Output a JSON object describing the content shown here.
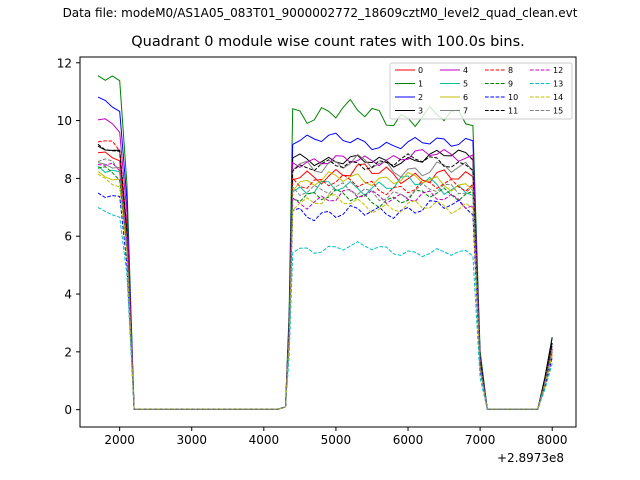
{
  "suptitle": "Data file: modeM0/AS1A05_083T01_9000002772_18609cztM0_level2_quad_clean.evt",
  "chart_data": {
    "type": "line",
    "title": "Quadrant 0 module wise count rates with 100.0s bins.",
    "xlabel": "",
    "ylabel": "",
    "x_offset_label": "+2.8973e8",
    "xlim": [
      1450,
      8330
    ],
    "ylim": [
      -0.6,
      12.2
    ],
    "xticks": [
      2000,
      3000,
      4000,
      5000,
      6000,
      7000,
      8000
    ],
    "yticks": [
      0,
      2,
      4,
      6,
      8,
      10,
      12
    ],
    "grid": false,
    "legend_position": "top-right",
    "legend_columns": 4,
    "x": [
      1700,
      1800,
      1900,
      2000,
      2100,
      2200,
      2300,
      2400,
      2500,
      2600,
      2700,
      2800,
      2900,
      3000,
      3100,
      3200,
      3300,
      3400,
      3500,
      3600,
      3700,
      3800,
      3900,
      4000,
      4100,
      4200,
      4300,
      4350,
      4400,
      4500,
      4600,
      4700,
      4800,
      4900,
      5000,
      5100,
      5200,
      5300,
      5400,
      5500,
      5600,
      5700,
      5800,
      5900,
      6000,
      6100,
      6200,
      6300,
      6400,
      6500,
      6600,
      6700,
      6800,
      6900,
      7000,
      7100,
      7200,
      7300,
      7400,
      7500,
      7600,
      7700,
      7800,
      7900,
      8000
    ],
    "series": [
      {
        "name": "0",
        "color": "#ff0000",
        "dash": "solid",
        "start": 8.8,
        "plateau": 8.1,
        "end": 1.9,
        "amp": 0.35,
        "ph": 0.2
      },
      {
        "name": "1",
        "color": "#008000",
        "dash": "solid",
        "start": 11.5,
        "plateau": 10.2,
        "end": 2.5,
        "amp": 0.45,
        "ph": 1.1
      },
      {
        "name": "2",
        "color": "#0000ff",
        "dash": "solid",
        "start": 10.7,
        "plateau": 9.3,
        "end": 2.3,
        "amp": 0.25,
        "ph": 2.3
      },
      {
        "name": "3",
        "color": "#000000",
        "dash": "solid",
        "start": 9.0,
        "plateau": 8.7,
        "end": 2.5,
        "amp": 0.25,
        "ph": 0.7
      },
      {
        "name": "4",
        "color": "#c000c0",
        "dash": "solid",
        "start": 10.0,
        "plateau": 8.7,
        "end": 2.2,
        "amp": 0.25,
        "ph": 1.9
      },
      {
        "name": "5",
        "color": "#00c0a0",
        "dash": "solid",
        "start": 8.4,
        "plateau": 7.7,
        "end": 2.1,
        "amp": 0.35,
        "ph": 3.0
      },
      {
        "name": "6",
        "color": "#c0c000",
        "dash": "solid",
        "start": 8.1,
        "plateau": 7.9,
        "end": 2.0,
        "amp": 0.3,
        "ph": 2.6
      },
      {
        "name": "7",
        "color": "#808080",
        "dash": "solid",
        "start": 8.4,
        "plateau": 8.4,
        "end": 2.2,
        "amp": 0.35,
        "ph": 0.4
      },
      {
        "name": "8",
        "color": "#ff0000",
        "dash": "dashed",
        "start": 9.3,
        "plateau": 7.8,
        "end": 2.1,
        "amp": 0.3,
        "ph": 1.5
      },
      {
        "name": "9",
        "color": "#008000",
        "dash": "dashed",
        "start": 8.3,
        "plateau": 7.4,
        "end": 2.0,
        "amp": 0.3,
        "ph": 2.0
      },
      {
        "name": "10",
        "color": "#0000ff",
        "dash": "dashed",
        "start": 7.4,
        "plateau": 6.9,
        "end": 1.8,
        "amp": 0.3,
        "ph": 0.9
      },
      {
        "name": "11",
        "color": "#000000",
        "dash": "dashed",
        "start": 9.1,
        "plateau": 8.5,
        "end": 2.3,
        "amp": 0.25,
        "ph": 2.8
      },
      {
        "name": "12",
        "color": "#c000c0",
        "dash": "dashed",
        "start": 8.5,
        "plateau": 7.3,
        "end": 2.0,
        "amp": 0.3,
        "ph": 1.3
      },
      {
        "name": "13",
        "color": "#00c0c0",
        "dash": "dashed",
        "start": 6.9,
        "plateau": 5.5,
        "end": 1.6,
        "amp": 0.2,
        "ph": 0.5
      },
      {
        "name": "14",
        "color": "#c0c000",
        "dash": "dashed",
        "start": 8.0,
        "plateau": 7.1,
        "end": 1.9,
        "amp": 0.3,
        "ph": 2.4
      },
      {
        "name": "15",
        "color": "#808080",
        "dash": "dashed",
        "start": 8.6,
        "plateau": 7.6,
        "end": 2.1,
        "amp": 0.3,
        "ph": 1.7
      }
    ]
  }
}
